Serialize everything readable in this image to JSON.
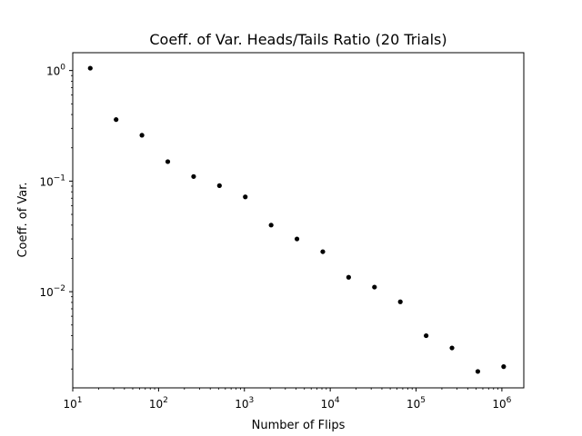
{
  "chart_data": {
    "type": "scatter",
    "title": "Coeff. of Var. Heads/Tails Ratio (20 Trials)",
    "xlabel": "Number of Flips",
    "ylabel": "Coeff. of Var.",
    "xscale": "log",
    "yscale": "log",
    "xlim": [
      10,
      1800000
    ],
    "ylim": [
      0.00135,
      1.45
    ],
    "grid": false,
    "marker_color": "#000000",
    "x_ticks": [
      {
        "value": 10,
        "base": "10",
        "exp": "1"
      },
      {
        "value": 100,
        "base": "10",
        "exp": "2"
      },
      {
        "value": 1000,
        "base": "10",
        "exp": "3"
      },
      {
        "value": 10000,
        "base": "10",
        "exp": "4"
      },
      {
        "value": 100000,
        "base": "10",
        "exp": "5"
      },
      {
        "value": 1000000,
        "base": "10",
        "exp": "6"
      }
    ],
    "y_ticks": [
      {
        "value": 0.01,
        "base": "10",
        "exp": "−2"
      },
      {
        "value": 0.1,
        "base": "10",
        "exp": "−1"
      },
      {
        "value": 1,
        "base": "10",
        "exp": "0"
      }
    ],
    "points": [
      {
        "x": 16,
        "y": 1.05
      },
      {
        "x": 32,
        "y": 0.36
      },
      {
        "x": 64,
        "y": 0.26
      },
      {
        "x": 128,
        "y": 0.15
      },
      {
        "x": 256,
        "y": 0.11
      },
      {
        "x": 512,
        "y": 0.091
      },
      {
        "x": 1024,
        "y": 0.072
      },
      {
        "x": 2048,
        "y": 0.04
      },
      {
        "x": 4096,
        "y": 0.03
      },
      {
        "x": 8192,
        "y": 0.023
      },
      {
        "x": 16384,
        "y": 0.0135
      },
      {
        "x": 32768,
        "y": 0.011
      },
      {
        "x": 65536,
        "y": 0.0081
      },
      {
        "x": 131072,
        "y": 0.004
      },
      {
        "x": 262144,
        "y": 0.0031
      },
      {
        "x": 524288,
        "y": 0.0019
      },
      {
        "x": 1048576,
        "y": 0.0021
      }
    ]
  }
}
